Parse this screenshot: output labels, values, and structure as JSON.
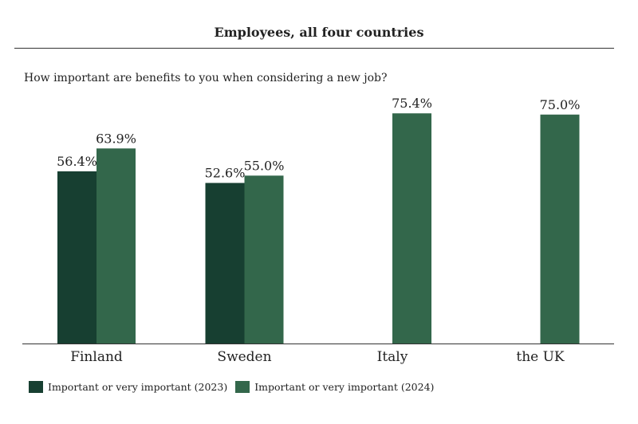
{
  "chart_data": {
    "type": "bar",
    "title": "Employees, all four countries",
    "subtitle": "How important are benefits to you when considering a new job?",
    "categories": [
      "Finland",
      "Sweden",
      "Italy",
      "the UK"
    ],
    "series": [
      {
        "name": "Important or very important (2023)",
        "values": [
          56.4,
          52.6,
          null,
          null
        ],
        "labels": [
          "56.4%",
          "52.6%",
          "",
          ""
        ],
        "color": "#173f31"
      },
      {
        "name": "Important or very important (2024)",
        "values": [
          63.9,
          55.0,
          75.4,
          75.0
        ],
        "labels": [
          "63.9%",
          "55.0%",
          "75.4%",
          "75.0%"
        ],
        "color": "#33674b"
      }
    ],
    "ylim": [
      0,
      100
    ],
    "grid": false,
    "legend": "bottom-left"
  }
}
